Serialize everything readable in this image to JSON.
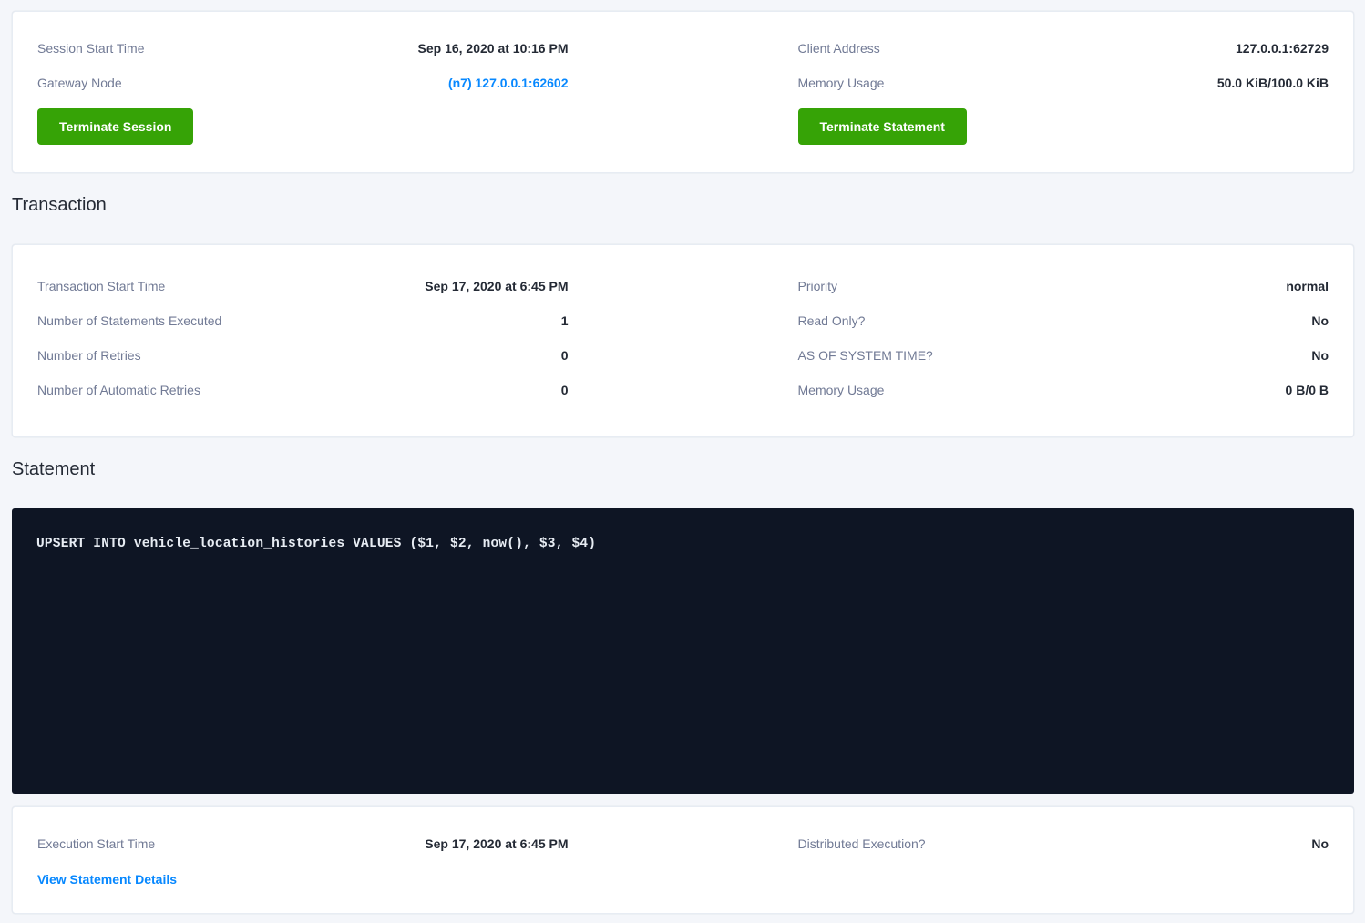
{
  "colors": {
    "page_background": "#f4f6fa",
    "card_background": "#ffffff",
    "label_text": "#717a95",
    "value_text": "#242a35",
    "link_blue": "#0788ff",
    "button_green": "#36a306",
    "sql_box_background": "#0e1524",
    "sql_text": "#e7ecf3"
  },
  "session_card": {
    "left_rows": [
      {
        "label": "Session Start Time",
        "value": "Sep 16, 2020 at 10:16 PM"
      },
      {
        "label": "Gateway Node",
        "value": "(n7) 127.0.0.1:62602"
      }
    ],
    "right_rows": [
      {
        "label": "Client Address",
        "value": "127.0.0.1:62729"
      },
      {
        "label": "Memory Usage",
        "value": "50.0 KiB/100.0 KiB"
      }
    ],
    "terminate_session_label": "Terminate Session",
    "terminate_statement_label": "Terminate Statement"
  },
  "transaction": {
    "heading": "Transaction",
    "left_rows": [
      {
        "label": "Transaction Start Time",
        "value": "Sep 17, 2020 at 6:45 PM"
      },
      {
        "label": "Number of Statements Executed",
        "value": "1"
      },
      {
        "label": "Number of Retries",
        "value": "0"
      },
      {
        "label": "Number of Automatic Retries",
        "value": "0"
      }
    ],
    "right_rows": [
      {
        "label": "Priority",
        "value": "normal"
      },
      {
        "label": "Read Only?",
        "value": "No"
      },
      {
        "label": "AS OF SYSTEM TIME?",
        "value": "No"
      },
      {
        "label": "Memory Usage",
        "value": "0 B/0 B"
      }
    ]
  },
  "statement": {
    "heading": "Statement",
    "sql": "UPSERT INTO vehicle_location_histories VALUES ($1, $2, now(), $3, $4)"
  },
  "execution_card": {
    "left_rows": [
      {
        "label": "Execution Start Time",
        "value": "Sep 17, 2020 at 6:45 PM"
      }
    ],
    "right_rows": [
      {
        "label": "Distributed Execution?",
        "value": "No"
      }
    ],
    "view_statement_details_label": "View Statement Details"
  }
}
